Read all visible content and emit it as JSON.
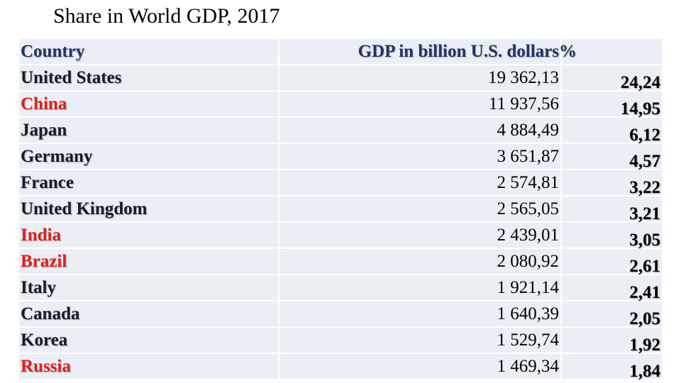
{
  "title": "Share in World GDP, 2017",
  "colors": {
    "highlight": "#e0201b",
    "header_text": "#1f3566",
    "cell_background": "#eceef5"
  },
  "table": {
    "headers": {
      "country": "Country",
      "gdp": "GDP in billion U.S. dollars",
      "share": "%"
    },
    "rows": [
      {
        "country": "United States",
        "gdp": "19 362,13",
        "share": "24,24",
        "highlight": false
      },
      {
        "country": "China",
        "gdp": "11 937,56",
        "share": "14,95",
        "highlight": true
      },
      {
        "country": "Japan",
        "gdp": "4 884,49",
        "share": "6,12",
        "highlight": false
      },
      {
        "country": "Germany",
        "gdp": "3 651,87",
        "share": "4,57",
        "highlight": false
      },
      {
        "country": "France",
        "gdp": "2 574,81",
        "share": "3,22",
        "highlight": false
      },
      {
        "country": "United Kingdom",
        "gdp": "2 565,05",
        "share": "3,21",
        "highlight": false
      },
      {
        "country": "India",
        "gdp": "2 439,01",
        "share": "3,05",
        "highlight": true
      },
      {
        "country": "Brazil",
        "gdp": "2 080,92",
        "share": "2,61",
        "highlight": true
      },
      {
        "country": "Italy",
        "gdp": "1 921,14",
        "share": "2,41",
        "highlight": false
      },
      {
        "country": "Canada",
        "gdp": "1 640,39",
        "share": "2,05",
        "highlight": false
      },
      {
        "country": "Korea",
        "gdp": "1 529,74",
        "share": "1,92",
        "highlight": false
      },
      {
        "country": "Russia",
        "gdp": "1 469,34",
        "share": "1,84",
        "highlight": true
      }
    ]
  }
}
